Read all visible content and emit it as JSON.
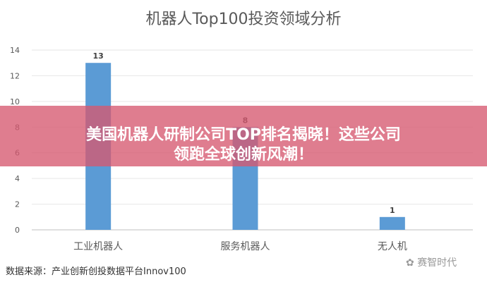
{
  "chart_data": {
    "type": "bar",
    "title": "机器人Top100投资领域分析",
    "categories": [
      "工业机器人",
      "服务机器人",
      "无人机"
    ],
    "values": [
      13,
      8,
      1
    ],
    "ylim": [
      0,
      14
    ],
    "yticks": [
      0,
      2,
      4,
      6,
      8,
      10,
      12,
      14
    ],
    "grid": true,
    "bar_color": "#5b9bd5",
    "xlabel": "",
    "ylabel": ""
  },
  "banner": {
    "line1": "美国机器人研制公司TOP排名揭晓！这些公司",
    "line2": "领跑全球创新风潮！",
    "color": "#d65870"
  },
  "source": "数据来源：产业创新创投数据平台Innov100",
  "watermark": "赛智时代"
}
